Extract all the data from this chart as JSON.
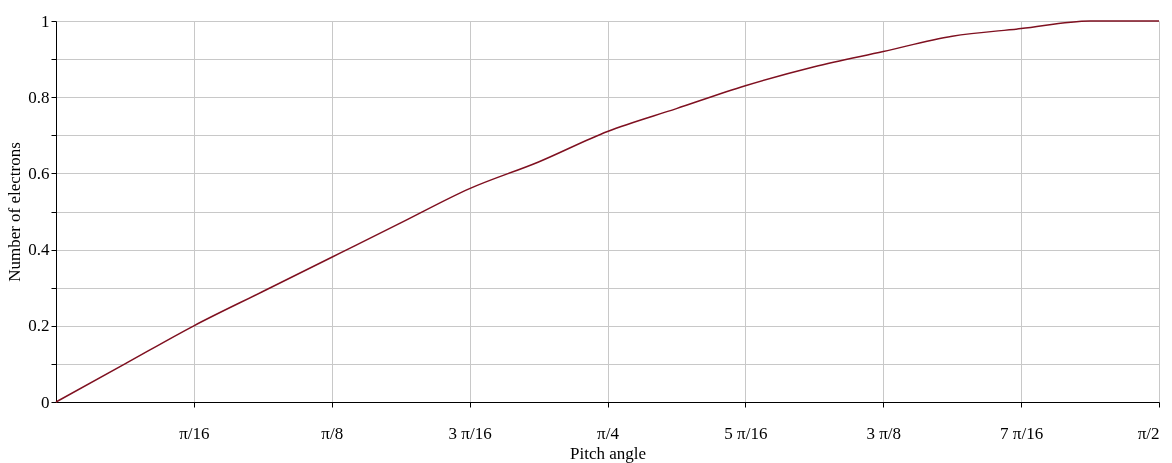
{
  "chart_data": {
    "type": "line",
    "xlabel": "Pitch angle",
    "ylabel": "Number of electrons",
    "x": [
      0,
      0.0982,
      0.1963,
      0.2945,
      0.3927,
      0.4909,
      0.589,
      0.6872,
      0.7854,
      0.8836,
      0.9817,
      1.0799,
      1.1781,
      1.2763,
      1.3744,
      1.4726,
      1.5708
    ],
    "series": [
      {
        "color": "#7f1020",
        "values": [
          0,
          0.1,
          0.2,
          0.29,
          0.38,
          0.47,
          0.56,
          0.63,
          0.71,
          0.77,
          0.83,
          0.88,
          0.92,
          0.96,
          0.98,
          1.0,
          1.0
        ]
      }
    ],
    "xlim": [
      0,
      1.5708
    ],
    "xticks": [
      {
        "value": 0.19635,
        "label": "π/16"
      },
      {
        "value": 0.3927,
        "label": "π/8"
      },
      {
        "value": 0.58905,
        "label": "3 π/16"
      },
      {
        "value": 0.7854,
        "label": "π/4"
      },
      {
        "value": 0.98175,
        "label": "5 π/16"
      },
      {
        "value": 1.1781,
        "label": "3 π/8"
      },
      {
        "value": 1.37445,
        "label": "7 π/16"
      },
      {
        "value": 1.5708,
        "label": "π/2"
      }
    ],
    "ylim": [
      0,
      1
    ],
    "yticks": [
      0,
      {
        "value": 0.1,
        "label": null
      },
      0.2,
      {
        "value": 0.3,
        "label": null
      },
      0.4,
      {
        "value": 0.5,
        "label": null
      },
      0.6,
      {
        "value": 0.7,
        "label": null
      },
      0.8,
      {
        "value": 0.9,
        "label": null
      },
      1
    ],
    "grid": true,
    "marker": "none",
    "line_style": "solid"
  }
}
